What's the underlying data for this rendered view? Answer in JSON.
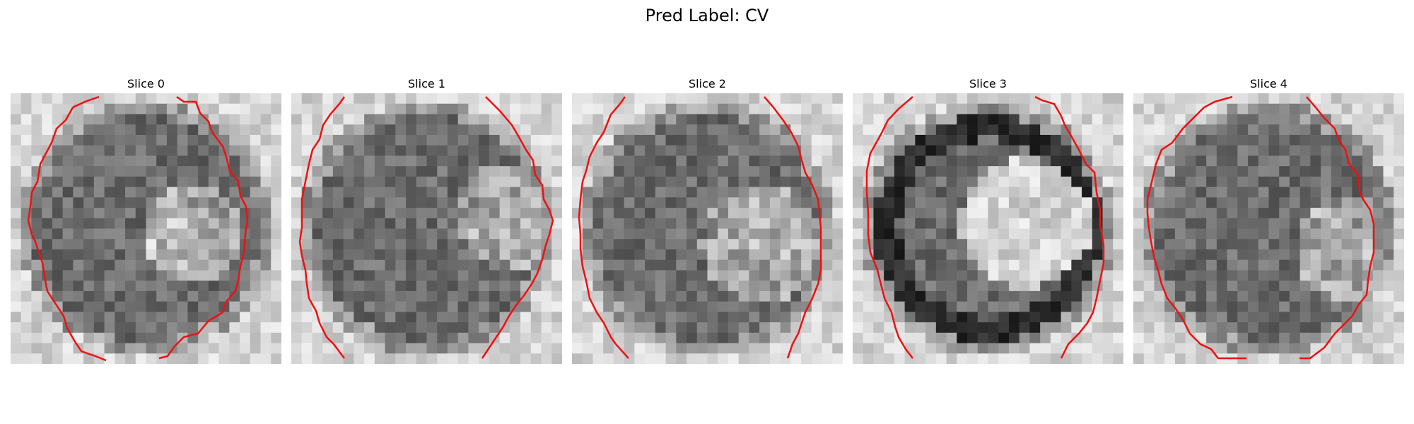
{
  "figure": {
    "title": "Pred Label: CV"
  },
  "contour_color": "#ee1111",
  "slices": [
    {
      "title": "Slice 0"
    },
    {
      "title": "Slice 1"
    },
    {
      "title": "Slice 2"
    },
    {
      "title": "Slice 3"
    },
    {
      "title": "Slice 4"
    }
  ]
}
